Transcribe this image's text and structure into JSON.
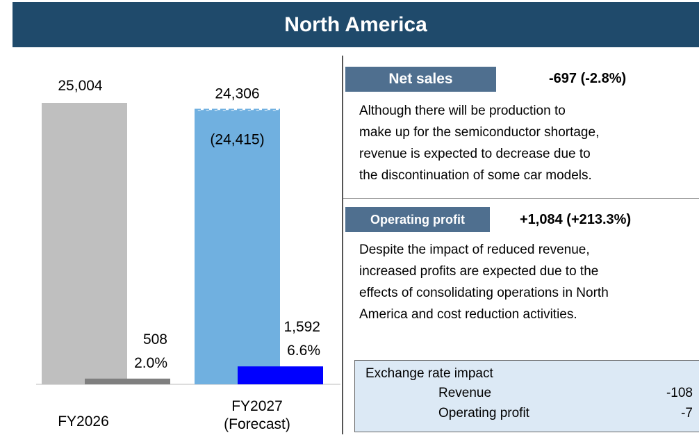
{
  "title": "North America",
  "chart_data": {
    "type": "bar",
    "categories": [
      "FY2026",
      "FY2027 (Forecast)"
    ],
    "series": [
      {
        "colors": [
          "#bfbfbf",
          "#70b0e0"
        ],
        "values": [
          25004,
          24306
        ],
        "value_labels": [
          "25,004",
          "24,306"
        ]
      },
      {
        "colors": [
          "#7f7f7f",
          "#0000ff"
        ],
        "values": [
          508,
          1592
        ],
        "value_labels": [
          "508",
          "1,592"
        ]
      }
    ],
    "margins": {
      "values": [
        2.0,
        6.6
      ],
      "value_labels": [
        "2.0%",
        "6.6%"
      ]
    },
    "previous_forecast": {
      "value": 24415,
      "label": "(24,415)"
    }
  },
  "net_sales": {
    "label": "Net sales",
    "change": "-697 (-2.8%)",
    "lines": [
      "Although there will be production to",
      "make up for the semiconductor shortage,",
      "revenue is expected to decrease due to",
      "the discontinuation of some car models."
    ]
  },
  "operating_profit": {
    "label": "Operating profit",
    "change": "+1,084 (+213.3%)",
    "lines": [
      "Despite the impact of reduced revenue,",
      "increased profits are expected due to the",
      "effects of consolidating operations in North",
      "America and cost reduction activities."
    ]
  },
  "exchange_rate": {
    "title": "Exchange rate impact",
    "rows": [
      [
        "Revenue",
        "-108"
      ],
      [
        "Operating profit",
        "-7"
      ]
    ]
  }
}
